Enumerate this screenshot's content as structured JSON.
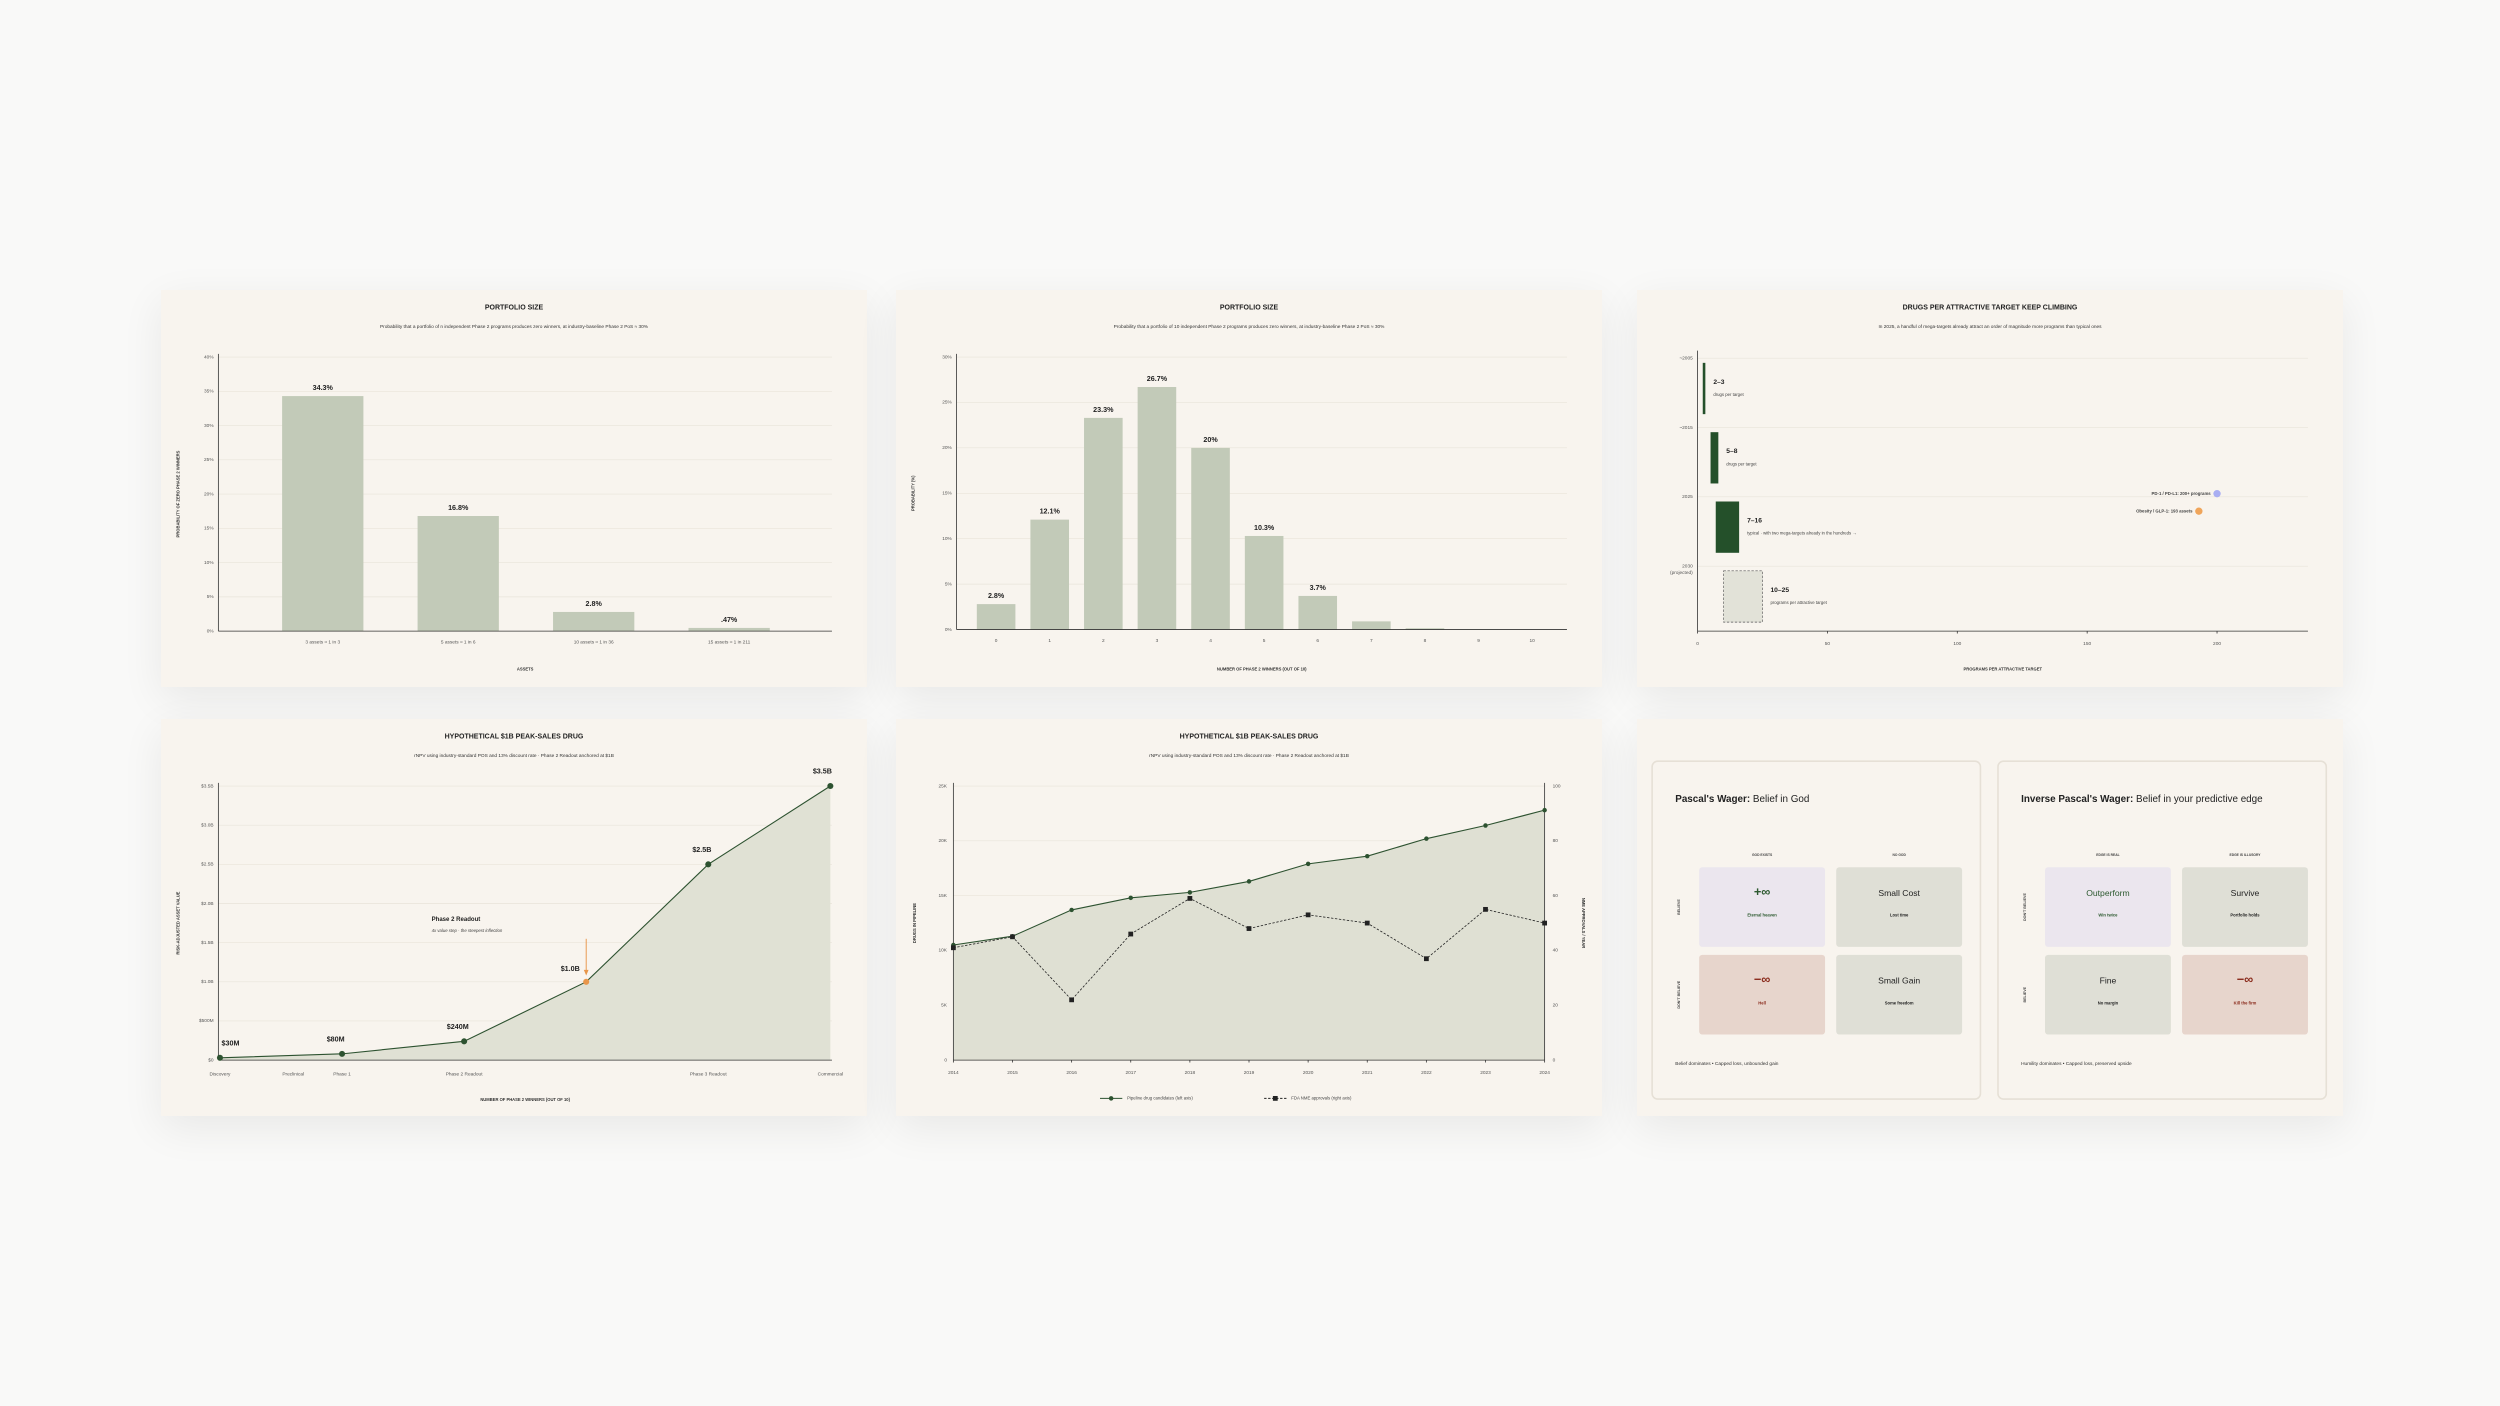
{
  "chart_data": [
    {
      "type": "bar",
      "title": "PORTFOLIO SIZE",
      "subtitle": "Probability that a portfolio of n independent Phase 2 programs produces zero winners, at industry-baseline Phase 2 PoS ≈ 30%",
      "categories": [
        "3 assets ≈ 1 in 3",
        "5 assets ≈ 1 in 6",
        "10 assets ≈ 1 in 36",
        "15 assets ≈ 1 in 211"
      ],
      "values": [
        34.3,
        16.8,
        2.8,
        0.47
      ],
      "value_labels": [
        "34.3%",
        "16.8%",
        "2.8%",
        ".47%"
      ],
      "color": "#c2cab8",
      "x_label": "ASSETS",
      "y_label": "PROBABILITY OF ZERO PHASE 2 WINNERS",
      "ylim": [
        0,
        40
      ],
      "yticks": [
        {
          "value": 0,
          "label": "0%"
        },
        {
          "value": 5,
          "label": "5%"
        },
        {
          "value": 10,
          "label": "10%"
        },
        {
          "value": 15,
          "label": "15%"
        },
        {
          "value": 20,
          "label": "20%"
        },
        {
          "value": 25,
          "label": "25%"
        },
        {
          "value": 30,
          "label": "30%"
        },
        {
          "value": 35,
          "label": "35%"
        },
        {
          "value": 40,
          "label": "40%"
        }
      ],
      "grid": true
    },
    {
      "type": "bar",
      "title": "PORTFOLIO SIZE",
      "subtitle": "Probability that a portfolio of 10 independent Phase 2 programs produces zero winners, at industry-baseline Phase 2 PoS ≈ 30%",
      "categories": [
        "0",
        "1",
        "2",
        "3",
        "4",
        "5",
        "6",
        "7",
        "8",
        "9",
        "10"
      ],
      "values": [
        2.8,
        12.1,
        23.3,
        26.7,
        20,
        10.3,
        3.7,
        0.9,
        0.14,
        0.01,
        0
      ],
      "value_labels": [
        "2.8%",
        "12.1%",
        "23.3%",
        "26.7%",
        "20%",
        "10.3%",
        "3.7%",
        null,
        null,
        null,
        null
      ],
      "color": "#c2cab8",
      "x_label": "NUMBER OF PHASE 2 WINNERS (OUT OF 10)",
      "y_label": "PROBABILITY (%)",
      "ylim": [
        0,
        30
      ],
      "yticks": [
        {
          "value": 0,
          "label": "0%"
        },
        {
          "value": 5,
          "label": "5%"
        },
        {
          "value": 10,
          "label": "10%"
        },
        {
          "value": 15,
          "label": "15%"
        },
        {
          "value": 20,
          "label": "20%"
        },
        {
          "value": 25,
          "label": "25%"
        },
        {
          "value": 30,
          "label": "30%"
        }
      ],
      "grid": true
    },
    {
      "type": "range-bar",
      "title": "DRUGS PER ATTRACTIVE TARGET KEEP CLIMBING",
      "subtitle": "In 2025, a handful of mega-targets already attract an order of magnitude more programs than typical ones",
      "categories": [
        "~2005",
        "~2015",
        "2025",
        "2030"
      ],
      "category_notes": [
        null,
        null,
        null,
        "(projected)"
      ],
      "low": [
        2,
        5,
        7,
        10
      ],
      "high": [
        3,
        8,
        16,
        25
      ],
      "value_labels": [
        "2–3",
        "5–8",
        "7–16",
        "10–25"
      ],
      "notes": [
        "drugs per target",
        "drugs per target",
        "typical · with two mega-targets already in the hundreds →",
        "programs per attractive target"
      ],
      "styles": [
        "solid",
        "solid",
        "solid",
        "dashed"
      ],
      "color": "#24502a",
      "projected_color": "#e2e2d8",
      "points": [
        {
          "label": "PD-1 / PD-L1: 200+ programs",
          "value": 200,
          "color": "#a9aef2"
        },
        {
          "label": "Obesity / GLP-1: 193 assets",
          "value": 193,
          "color": "#f0a55a"
        }
      ],
      "xlim": [
        0,
        235
      ],
      "xticks": [
        0,
        50,
        100,
        150,
        200
      ],
      "x_label": "PROGRAMS PER ATTRACTIVE TARGET"
    },
    {
      "type": "area",
      "title": "HYPOTHETICAL $1B PEAK-SALES DRUG",
      "subtitle": "rNPV using industry-standard POS and 13% discount rate · Phase 2 Readout anchored at $1B",
      "categories": [
        "Discovery",
        "Phase 1",
        "Phase 2 Readout",
        null,
        "Phase 3 Readout",
        "Commercial"
      ],
      "axis_note": "Preclinical",
      "values": [
        30000000,
        80000000,
        240000000,
        1000000000,
        2500000000,
        3500000000
      ],
      "value_labels": [
        "$30M",
        "$80M",
        "$240M",
        "$1.0B",
        "$2.5B",
        "$3.5B"
      ],
      "color": "#2d5230",
      "fill": "#e0e1d4",
      "marker_colors": [
        "#2d5230",
        "#2d5230",
        "#2d5230",
        "#e8964a",
        "#2d5230",
        "#2d5230"
      ],
      "annotation": {
        "title": "Phase 2 Readout",
        "text": "4x value step · the steepest inflection",
        "color": "#e8964a"
      },
      "ylim": [
        0,
        3500000000
      ],
      "yticks": [
        {
          "value": 0,
          "label": "$0"
        },
        {
          "value": 500000000,
          "label": "$500M"
        },
        {
          "value": 1000000000,
          "label": "$1.0B"
        },
        {
          "value": 1500000000,
          "label": "$1.5B"
        },
        {
          "value": 2000000000,
          "label": "$2.0B"
        },
        {
          "value": 2500000000,
          "label": "$2.5B"
        },
        {
          "value": 3000000000,
          "label": "$3.0B"
        },
        {
          "value": 3500000000,
          "label": "$3.5B"
        }
      ],
      "x_label": "NUMBER OF PHASE 2 WINNERS (OUT OF 10)",
      "y_label": "RISK-ADJUSTED ASSET VALUE",
      "grid": true
    },
    {
      "type": "line",
      "title": "HYPOTHETICAL $1B PEAK-SALES DRUG",
      "subtitle": "rNPV using industry-standard POS and 13% discount rate · Phase 2 Readout anchored at $1B",
      "x": [
        2014,
        2015,
        2016,
        2017,
        2018,
        2019,
        2020,
        2021,
        2022,
        2023,
        2024
      ],
      "xlim": [
        2014,
        2024
      ],
      "xticks": [
        2014,
        2015,
        2016,
        2017,
        2018,
        2019,
        2020,
        2021,
        2022,
        2023,
        2024
      ],
      "series": [
        {
          "name": "Pipeline drug candidates (left axis)",
          "color": "#2d5230",
          "fill": "#dfe0d3",
          "marker": "circle",
          "values": [
            10500,
            11300,
            13700,
            14800,
            15300,
            16300,
            17900,
            18600,
            20200,
            21400,
            22800
          ]
        },
        {
          "name": "FDA NME approvals (right axis)",
          "color": "#222222",
          "marker": "square",
          "dash": true,
          "axis": "y2",
          "values": [
            41,
            45,
            22,
            46,
            59,
            48,
            53,
            50,
            37,
            55,
            50
          ]
        }
      ],
      "ylim": [
        0,
        25000
      ],
      "yticks": [
        0,
        {
          "value": 5000,
          "label": "5K"
        },
        {
          "value": 10000,
          "label": "10K"
        },
        {
          "value": 15000,
          "label": "15K"
        },
        {
          "value": 20000,
          "label": "20K"
        },
        {
          "value": 25000,
          "label": "25K"
        }
      ],
      "y2lim": [
        0,
        100
      ],
      "y2ticks": [
        0,
        20,
        40,
        60,
        80,
        100
      ],
      "y_label": "DRUGS IN PIPELINE",
      "y2_label": "NME APPROVALS / YEAR",
      "grid": true,
      "legend": "bottom"
    }
  ],
  "wagers": [
    {
      "title_bold": "Pascal's Wager:",
      "title_rest": "Belief in God",
      "columns": [
        "GOD EXISTS",
        "NO GOD"
      ],
      "rows": [
        "BELIEVE",
        "DON'T BELIEVE"
      ],
      "cells": [
        [
          {
            "main": "+∞",
            "sub": "Eternal heaven",
            "tone": "positive"
          },
          {
            "main": "Small Cost",
            "sub": "Lost time",
            "tone": "neutral"
          }
        ],
        [
          {
            "main": "−∞",
            "sub": "Hell",
            "tone": "negative"
          },
          {
            "main": "Small Gain",
            "sub": "Some freedom",
            "tone": "neutral"
          }
        ]
      ],
      "footer": "Belief dominates • Capped loss, unbounded gain"
    },
    {
      "title_bold": "Inverse Pascal's Wager:",
      "title_rest": "Belief in your predictive edge",
      "columns": [
        "EDGE IS REAL",
        "EDGE IS ILLUSORY"
      ],
      "rows": [
        "DON'T BELIEVE",
        "BELIEVE"
      ],
      "cells": [
        [
          {
            "main": "Outperform",
            "sub": "Win twice",
            "tone": "positive"
          },
          {
            "main": "Survive",
            "sub": "Portfolio holds",
            "tone": "neutral"
          }
        ],
        [
          {
            "main": "Fine",
            "sub": "No margin",
            "tone": "neutral"
          },
          {
            "main": "−∞",
            "sub": "Kill the firm",
            "tone": "negative"
          }
        ]
      ],
      "footer": "Humility dominates • Capped loss, preserved upside"
    }
  ]
}
